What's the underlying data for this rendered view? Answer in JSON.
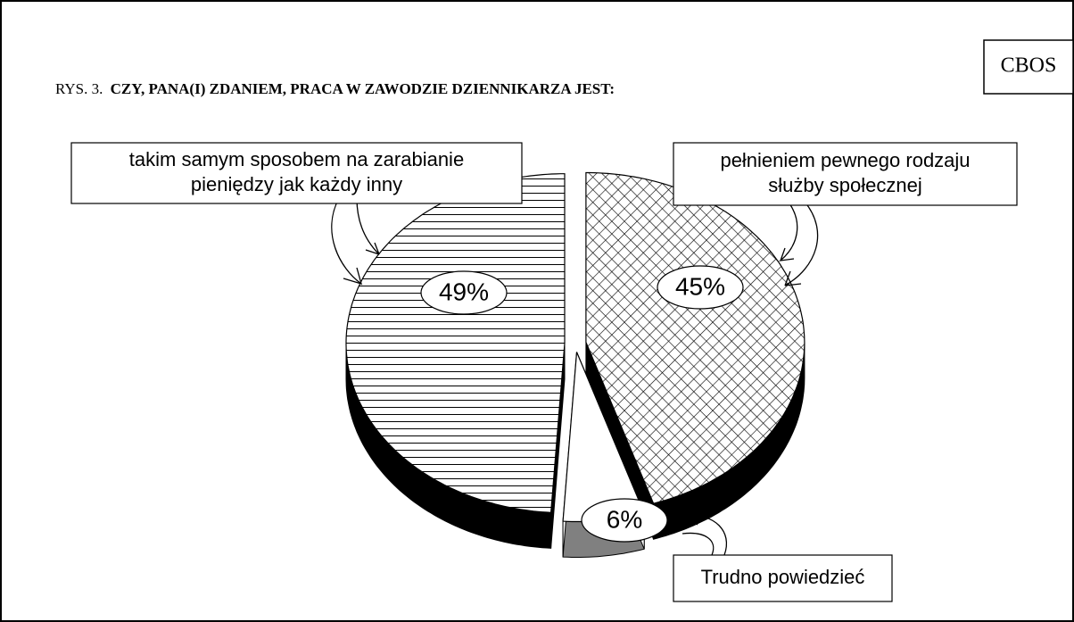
{
  "source": "CBOS",
  "chart_data": {
    "type": "pie",
    "figure_label": "RYS. 3.",
    "title": "CZY, PANA(I) ZDANIEM, PRACA W ZAWODZIE DZIENNIKARZA JEST:",
    "categories": [
      [
        "pełnieniem pewnego rodzaju",
        "służby społecznej"
      ],
      [
        "Trudno powiedzieć"
      ],
      [
        "takim samym sposobem na zarabianie",
        "pieniędzy jak każdy inny"
      ]
    ],
    "values": [
      45,
      6,
      49
    ],
    "value_labels": [
      "45%",
      "6%",
      "49%"
    ],
    "side_colors": [
      "#000000",
      "#808080",
      "#000000"
    ]
  }
}
